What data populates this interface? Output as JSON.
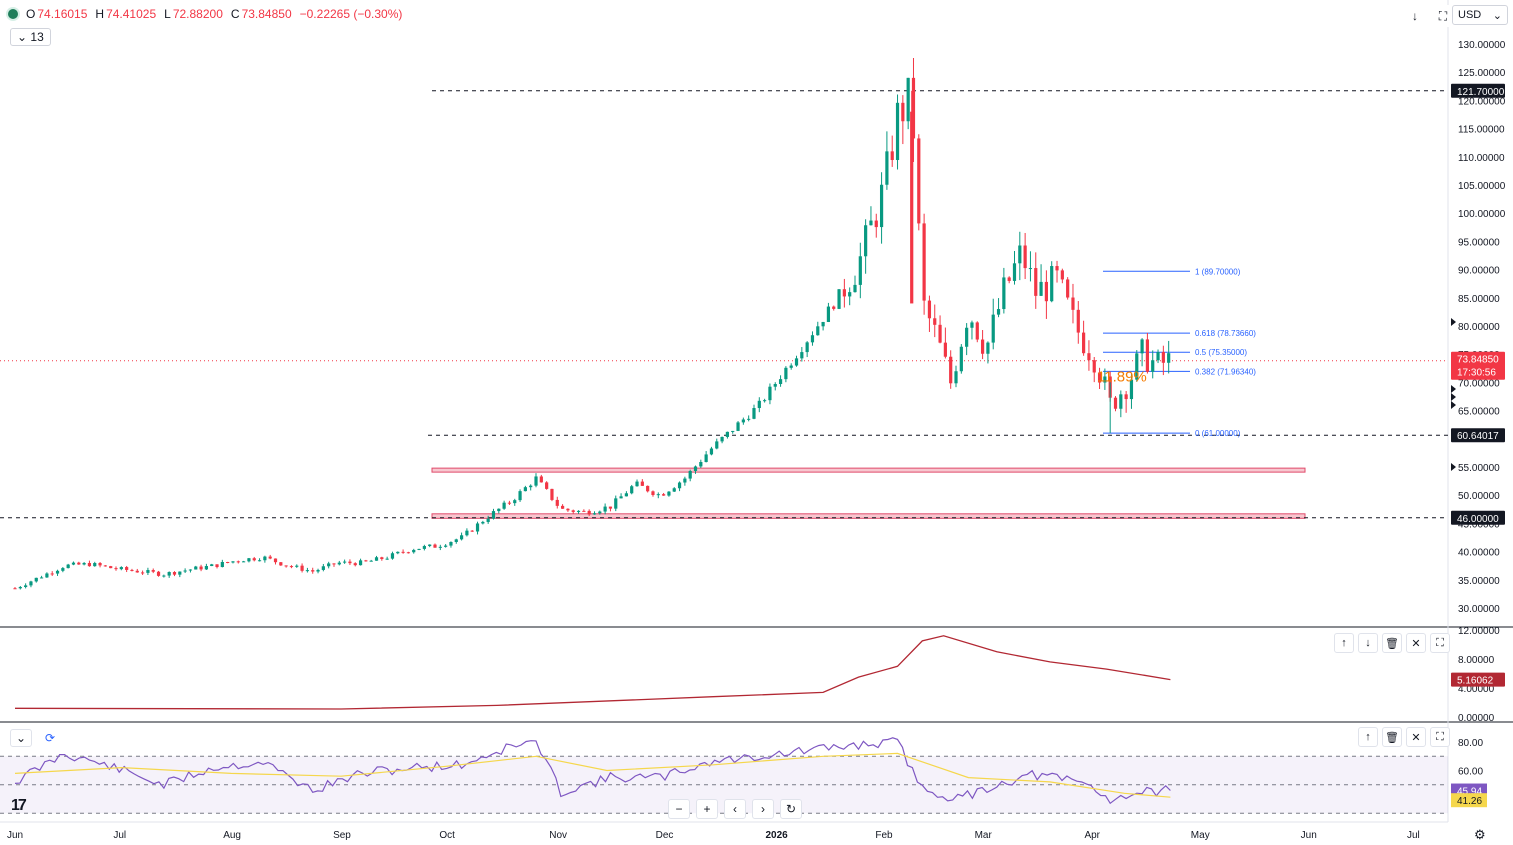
{
  "ohlc": {
    "open_label": "O",
    "open": "74.16015",
    "high_label": "H",
    "high": "74.41025",
    "low_label": "L",
    "low": "72.88200",
    "close_label": "C",
    "close": "73.84850",
    "change": "−0.22265 (−0.30%)"
  },
  "interval_value": "13",
  "currency": "USD",
  "price_axis": {
    "ticks": [
      "130.00000",
      "125.00000",
      "120.00000",
      "115.00000",
      "110.00000",
      "105.00000",
      "100.00000",
      "95.00000",
      "90.00000",
      "85.00000",
      "80.00000",
      "75.00000",
      "70.00000",
      "65.00000",
      "55.00000",
      "50.00000",
      "45.00000",
      "40.00000",
      "35.00000",
      "30.00000"
    ],
    "tick_values": [
      130,
      125,
      120,
      115,
      110,
      105,
      100,
      95,
      90,
      85,
      80,
      75,
      70,
      65,
      55,
      50,
      45,
      40,
      35,
      30
    ],
    "labels": [
      {
        "text": "121.70000",
        "value": 121.7,
        "bg": "#131722"
      },
      {
        "text": "60.64017",
        "value": 60.64017,
        "bg": "#131722"
      },
      {
        "text": "46.00000",
        "value": 46.0,
        "bg": "#131722"
      }
    ],
    "last_price": {
      "text": "73.84850",
      "countdown": "17:30:56",
      "value": 73.8485,
      "bg": "#f23645"
    }
  },
  "atr_axis": {
    "ticks": [
      "12.00000",
      "8.00000",
      "4.00000",
      "0.00000"
    ],
    "tick_values": [
      12,
      8,
      4,
      0
    ],
    "last": {
      "text": "5.16062",
      "value": 5.16062,
      "bg": "#b22833"
    }
  },
  "rsi_axis": {
    "ticks": [
      "80.00",
      "60.00",
      "40.00"
    ],
    "tick_values": [
      80,
      60,
      40
    ],
    "rsi": {
      "text": "45.94",
      "value": 45.94,
      "bg": "#7e57c2"
    },
    "ma": {
      "text": "41.26",
      "value": 41.26,
      "bg": "#f5d74c"
    }
  },
  "time_axis": [
    "Jun",
    "Jul",
    "Aug",
    "Sep",
    "Oct",
    "Nov",
    "Dec",
    "2026",
    "Feb",
    "Mar",
    "Apr",
    "May",
    "Jun",
    "Jul"
  ],
  "fib_levels": [
    {
      "label": "1 (89.70000)",
      "value": 89.7
    },
    {
      "label": "0.618 (78.73660)",
      "value": 78.7366
    },
    {
      "label": "0.5 (75.35000)",
      "value": 75.35
    },
    {
      "label": "0.382 (71.96340)",
      "value": 71.9634
    },
    {
      "label": "0 (61.00000)",
      "value": 61.0
    }
  ],
  "annotation_pct": "11.89%",
  "colors": {
    "up": "#089981",
    "down": "#f23645",
    "atr": "#b22833",
    "rsi": "#7e57c2",
    "rsi_ma": "#f5d74c",
    "fib": "#2962ff",
    "zone": "#f7c7cf",
    "zone_border": "#e04a6a",
    "annotation": "#f57c00"
  },
  "chart_data": {
    "type": "candlestick",
    "title": "",
    "x_range": [
      "2025-06-01",
      "2026-07-25"
    ],
    "y_range": [
      27.5,
      132
    ],
    "horizontal_lines": [
      121.7,
      60.64017,
      46.0
    ],
    "zones": [
      [
        54.2,
        54.8
      ],
      [
        45.9,
        46.7
      ]
    ],
    "close_path": [
      [
        "2025-06-01",
        33.5
      ],
      [
        "2025-06-08",
        35.5
      ],
      [
        "2025-06-15",
        37.5
      ],
      [
        "2025-06-22",
        37.8
      ],
      [
        "2025-06-29",
        37.0
      ],
      [
        "2025-07-06",
        36.5
      ],
      [
        "2025-07-13",
        36.0
      ],
      [
        "2025-07-20",
        36.8
      ],
      [
        "2025-07-27",
        37.5
      ],
      [
        "2025-08-03",
        38.5
      ],
      [
        "2025-08-10",
        39.0
      ],
      [
        "2025-08-17",
        37.5
      ],
      [
        "2025-08-24",
        36.5
      ],
      [
        "2025-08-31",
        38.0
      ],
      [
        "2025-09-07",
        38.0
      ],
      [
        "2025-09-14",
        39.0
      ],
      [
        "2025-09-21",
        40.5
      ],
      [
        "2025-09-28",
        41.0
      ],
      [
        "2025-10-05",
        42.5
      ],
      [
        "2025-10-12",
        46.0
      ],
      [
        "2025-10-19",
        49.0
      ],
      [
        "2025-10-26",
        53.0
      ],
      [
        "2025-11-02",
        47.5
      ],
      [
        "2025-11-09",
        47.0
      ],
      [
        "2025-11-16",
        48.0
      ],
      [
        "2025-11-23",
        52.0
      ],
      [
        "2025-11-30",
        50.0
      ],
      [
        "2025-12-07",
        53.0
      ],
      [
        "2025-12-14",
        58.0
      ],
      [
        "2025-12-21",
        62.0
      ],
      [
        "2025-12-28",
        66.0
      ],
      [
        "2026-01-04",
        72.0
      ],
      [
        "2026-01-11",
        78.0
      ],
      [
        "2026-01-18",
        84.0
      ],
      [
        "2026-01-25",
        91.0
      ],
      [
        "2026-02-01",
        104.0
      ],
      [
        "2026-02-05",
        117.0
      ],
      [
        "2026-02-09",
        121.0
      ],
      [
        "2026-02-12",
        84.0
      ],
      [
        "2026-02-16",
        78.0
      ],
      [
        "2026-02-20",
        70.0
      ],
      [
        "2026-02-25",
        83.0
      ],
      [
        "2026-03-02",
        76.0
      ],
      [
        "2026-03-07",
        86.0
      ],
      [
        "2026-03-12",
        93.0
      ],
      [
        "2026-03-16",
        86.0
      ],
      [
        "2026-03-22",
        88.0
      ],
      [
        "2026-03-27",
        80.0
      ],
      [
        "2026-04-02",
        74.0
      ],
      [
        "2026-04-06",
        66.0
      ],
      [
        "2026-04-11",
        70.0
      ],
      [
        "2026-04-15",
        75.0
      ],
      [
        "2026-04-19",
        73.0
      ],
      [
        "2026-04-23",
        73.85
      ]
    ],
    "atr_path": [
      [
        "2025-06-01",
        1.2
      ],
      [
        "2025-09-01",
        1.1
      ],
      [
        "2025-10-15",
        1.6
      ],
      [
        "2025-12-15",
        2.8
      ],
      [
        "2026-01-15",
        3.4
      ],
      [
        "2026-01-25",
        5.5
      ],
      [
        "2026-02-05",
        7.0
      ],
      [
        "2026-02-12",
        10.5
      ],
      [
        "2026-02-18",
        11.2
      ],
      [
        "2026-03-05",
        9.0
      ],
      [
        "2026-03-20",
        7.6
      ],
      [
        "2026-04-05",
        6.6
      ],
      [
        "2026-04-23",
        5.16
      ]
    ],
    "rsi_path": [
      [
        "2025-06-01",
        52
      ],
      [
        "2025-06-15",
        72
      ],
      [
        "2025-06-29",
        62
      ],
      [
        "2025-07-13",
        50
      ],
      [
        "2025-07-27",
        62
      ],
      [
        "2025-08-10",
        66
      ],
      [
        "2025-08-24",
        46
      ],
      [
        "2025-09-07",
        58
      ],
      [
        "2025-09-21",
        62
      ],
      [
        "2025-10-05",
        64
      ],
      [
        "2025-10-19",
        77
      ],
      [
        "2025-10-26",
        80
      ],
      [
        "2025-11-02",
        45
      ],
      [
        "2025-11-16",
        55
      ],
      [
        "2025-11-30",
        55
      ],
      [
        "2025-12-14",
        66
      ],
      [
        "2025-12-28",
        70
      ],
      [
        "2026-01-11",
        74
      ],
      [
        "2026-01-25",
        78
      ],
      [
        "2026-02-05",
        80
      ],
      [
        "2026-02-12",
        47
      ],
      [
        "2026-02-22",
        40
      ],
      [
        "2026-03-05",
        50
      ],
      [
        "2026-03-15",
        57
      ],
      [
        "2026-03-29",
        52
      ],
      [
        "2026-04-06",
        40
      ],
      [
        "2026-04-15",
        45
      ],
      [
        "2026-04-23",
        45.94
      ]
    ],
    "rsi_ma_path": [
      [
        "2025-06-01",
        58
      ],
      [
        "2025-07-01",
        62
      ],
      [
        "2025-08-01",
        58
      ],
      [
        "2025-09-01",
        56
      ],
      [
        "2025-10-01",
        63
      ],
      [
        "2025-10-26",
        70
      ],
      [
        "2025-11-15",
        60
      ],
      [
        "2025-12-15",
        64
      ],
      [
        "2026-01-15",
        70
      ],
      [
        "2026-02-05",
        72
      ],
      [
        "2026-02-25",
        55
      ],
      [
        "2026-03-20",
        52
      ],
      [
        "2026-04-10",
        44
      ],
      [
        "2026-04-23",
        41.26
      ]
    ]
  }
}
